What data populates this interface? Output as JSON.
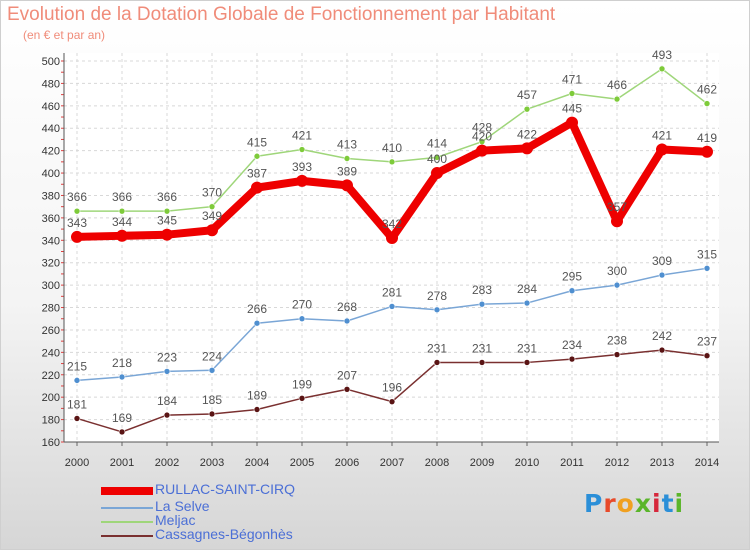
{
  "title": "Evolution de la Dotation Globale de Fonctionnement par Habitant",
  "subtitle": "(en € et par an)",
  "logo": "Proxiti",
  "chart_data": {
    "type": "line",
    "title": "Evolution de la Dotation Globale de Fonctionnement par Habitant",
    "subtitle": "(en € et par an)",
    "xlabel": "",
    "ylabel": "",
    "ylim": [
      160,
      500
    ],
    "yticks": [
      160,
      180,
      200,
      220,
      240,
      260,
      280,
      300,
      320,
      340,
      360,
      380,
      400,
      420,
      440,
      460,
      480,
      500
    ],
    "grid": true,
    "legend_position": "bottom-left",
    "categories": [
      "2000",
      "2001",
      "2002",
      "2003",
      "2004",
      "2005",
      "2006",
      "2007",
      "2008",
      "2009",
      "2010",
      "2011",
      "2012",
      "2013",
      "2014"
    ],
    "series": [
      {
        "name": "RULLAC-SAINT-CIRQ",
        "color": "#ee0000",
        "marker": "#ee0000",
        "label_color": "#555555",
        "width": 8,
        "values": [
          343,
          344,
          345,
          349,
          387,
          393,
          389,
          342,
          400,
          420,
          422,
          445,
          357,
          421,
          419
        ]
      },
      {
        "name": "La Selve",
        "color": "#7aa6d6",
        "marker": "#4f8fd0",
        "label_color": "#555555",
        "width": 1.5,
        "values": [
          215,
          218,
          223,
          224,
          266,
          270,
          268,
          281,
          278,
          283,
          284,
          295,
          300,
          309,
          315
        ]
      },
      {
        "name": "Meljac",
        "color": "#9fd67a",
        "marker": "#7ecb3a",
        "label_color": "#555555",
        "width": 1.5,
        "values": [
          366,
          366,
          366,
          370,
          415,
          421,
          413,
          410,
          414,
          428,
          457,
          471,
          466,
          493,
          462
        ]
      },
      {
        "name": "Cassagnes-Bégonhès",
        "color": "#7a3030",
        "marker": "#5a1414",
        "label_color": "#555555",
        "width": 1.5,
        "values": [
          181,
          169,
          184,
          185,
          189,
          199,
          207,
          196,
          231,
          231,
          231,
          234,
          238,
          242,
          237
        ]
      }
    ]
  }
}
